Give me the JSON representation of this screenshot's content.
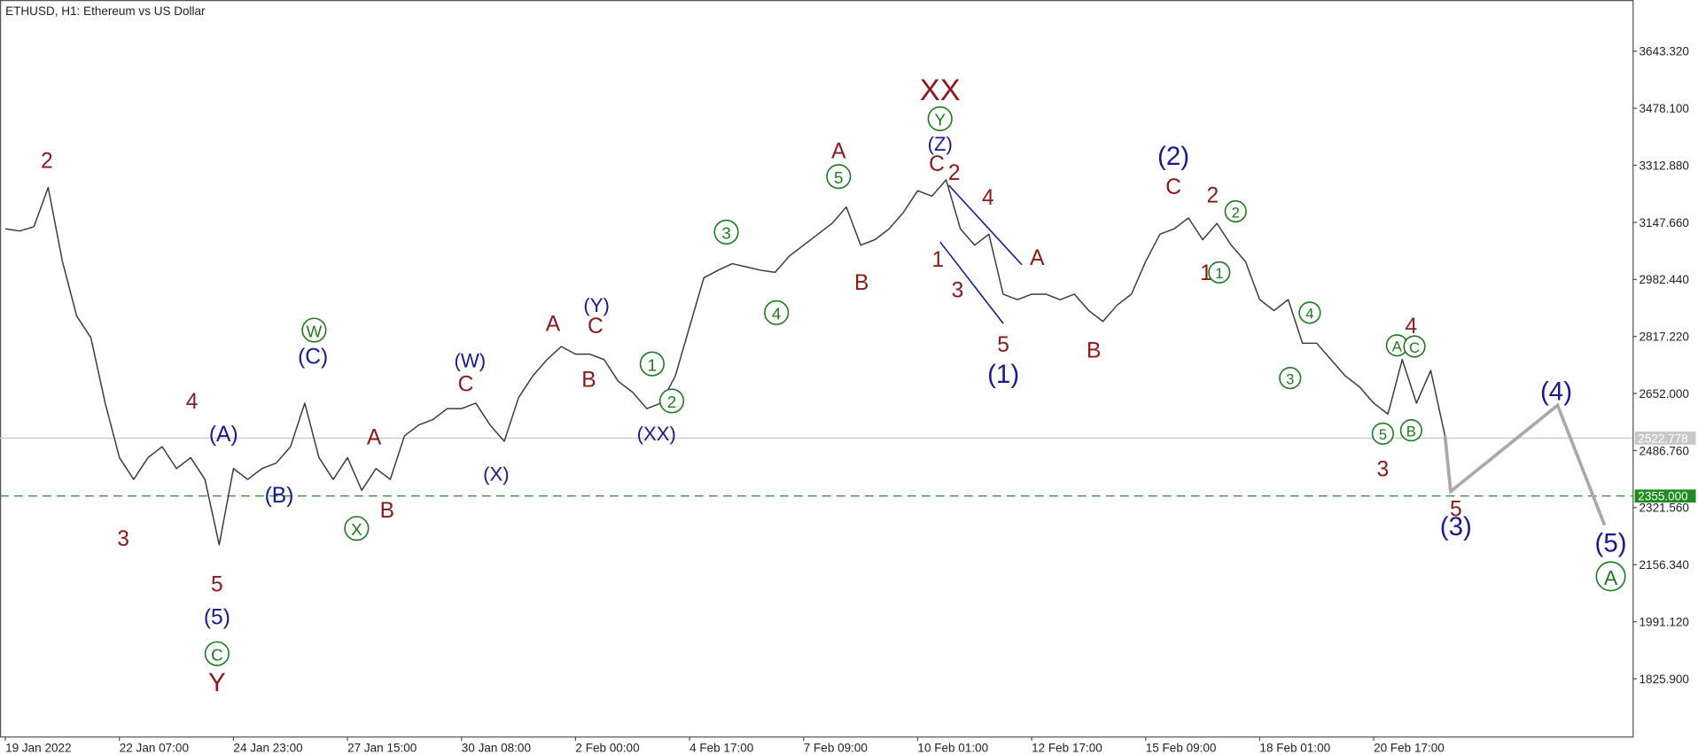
{
  "chart_data": {
    "type": "line",
    "title": "ETHUSD, H1:  Ethereum vs US Dollar",
    "categories": [
      "19 Jan 2022",
      null,
      null,
      null,
      null,
      null,
      null,
      null,
      "22 Jan 07:00",
      null,
      null,
      null,
      null,
      null,
      null,
      null,
      "24 Jan 23:00",
      null,
      null,
      null,
      null,
      null,
      null,
      null,
      "27 Jan 15:00",
      null,
      null,
      null,
      null,
      null,
      null,
      null,
      "30 Jan 08:00",
      null,
      null,
      null,
      null,
      null,
      null,
      null,
      "2 Feb 00:00",
      null,
      null,
      null,
      null,
      null,
      null,
      null,
      "4 Feb 17:00",
      null,
      null,
      null,
      null,
      null,
      null,
      null,
      "7 Feb 09:00",
      null,
      null,
      null,
      null,
      null,
      null,
      null,
      "10 Feb 01:00",
      null,
      null,
      null,
      null,
      null,
      null,
      null,
      "12 Feb 17:00",
      null,
      null,
      null,
      null,
      null,
      null,
      null,
      "15 Feb 09:00",
      null,
      null,
      null,
      null,
      null,
      null,
      null,
      "18 Feb 01:00",
      null,
      null,
      null,
      null,
      null,
      null,
      null,
      "20 Feb 17:00",
      null,
      null,
      null,
      null,
      null
    ],
    "series": [
      {
        "color": "#3a3a3a",
        "values": [
          3128.9,
          3122.6,
          3135.2,
          3248.8,
          3034.3,
          2876.5,
          2813.4,
          2624.0,
          2466.3,
          2403.1,
          2466.3,
          2497.8,
          2434.7,
          2466.3,
          2403.1,
          2213.8,
          2434.7,
          2403.1,
          2434.7,
          2450.5,
          2497.8,
          2624.0,
          2466.3,
          2403.1,
          2466.3,
          2371.6,
          2434.7,
          2403.1,
          2529.4,
          2560.9,
          2576.7,
          2608.3,
          2608.3,
          2624.0,
          2560.9,
          2513.6,
          2639.8,
          2702.9,
          2750.3,
          2788.1,
          2766.0,
          2766.0,
          2750.3,
          2687.2,
          2655.6,
          2608.3,
          2624.0,
          2702.9,
          2844.9,
          2986.9,
          3009.0,
          3028.0,
          3018.5,
          3009.0,
          3002.7,
          3050.0,
          3081.6,
          3113.2,
          3144.7,
          3192.0,
          3081.6,
          3097.4,
          3128.9,
          3176.3,
          3239.4,
          3223.6,
          3270.9,
          3128.9,
          3081.6,
          3113.2,
          2939.6,
          2923.8,
          2939.6,
          2939.6,
          2923.8,
          2939.6,
          2892.3,
          2860.7,
          2908.0,
          2939.6,
          3034.3,
          3113.2,
          3128.9,
          3160.5,
          3097.4,
          3144.7,
          3081.6,
          3034.3,
          2923.8,
          2892.3,
          2923.8,
          2797.6,
          2797.6,
          2750.3,
          2702.9,
          2671.4,
          2624.0,
          2592.5,
          2750.3,
          2624.0,
          2718.7,
          2529.4
        ]
      }
    ],
    "projection": {
      "color": "#a9a9a9",
      "x": [
        101,
        101.4,
        108.9,
        112.2
      ],
      "values": [
        2529.4,
        2368.4,
        2617.7,
        2270.6
      ]
    },
    "xlim": [
      -0.38,
      114.16
    ],
    "ylim": [
      1658.7,
      3791.6
    ],
    "yticks": [
      {
        "value": 3643.32,
        "label": "3643.320"
      },
      {
        "value": 3478.1,
        "label": "3478.100"
      },
      {
        "value": 3312.88,
        "label": "3312.880"
      },
      {
        "value": 3147.66,
        "label": "3147.660"
      },
      {
        "value": 2982.44,
        "label": "2982.440"
      },
      {
        "value": 2817.22,
        "label": "2817.220"
      },
      {
        "value": 2652,
        "label": "2652.000"
      },
      {
        "value": 2486.76,
        "label": "2486.760"
      },
      {
        "value": 2321.56,
        "label": "2321.560"
      },
      {
        "value": 2156.34,
        "label": "2156.340"
      },
      {
        "value": 1991.12,
        "label": "1991.120"
      },
      {
        "value": 1825.9,
        "label": "1825.900"
      }
    ],
    "price_line": {
      "value": 2522.778,
      "label": "2522.778",
      "color": "#c8c8c8"
    },
    "level_line": {
      "value": 2355,
      "label": "2355.000",
      "color": "#1e8c1e"
    },
    "wave_labels": [
      {
        "text": "2",
        "color": "#8b1a1a",
        "circled": false
      },
      {
        "text": "3",
        "color": "#8b1a1a",
        "circled": false
      },
      {
        "text": "4",
        "color": "#8b1a1a",
        "circled": false
      },
      {
        "text": "(A)",
        "color": "#1a1a8c",
        "circled": false
      },
      {
        "text": "(B)",
        "color": "#1a1a8c",
        "circled": false
      },
      {
        "text": "5",
        "color": "#8b1a1a",
        "circled": false
      },
      {
        "text": "(5)",
        "color": "#1a1a8c",
        "circled": false
      },
      {
        "text": "C",
        "color": "#1e7a1e",
        "circled": true
      },
      {
        "text": "Y",
        "color": "#8b1a1a",
        "circled": false
      },
      {
        "text": "W",
        "color": "#1e7a1e",
        "circled": true
      },
      {
        "text": "(C)",
        "color": "#1a1a8c",
        "circled": false
      },
      {
        "text": "A",
        "color": "#8b1a1a",
        "circled": false
      },
      {
        "text": "X",
        "color": "#1e7a1e",
        "circled": true
      },
      {
        "text": "B",
        "color": "#8b1a1a",
        "circled": false
      },
      {
        "text": "(W)",
        "color": "#1a1a8c",
        "circled": false
      },
      {
        "text": "C",
        "color": "#8b1a1a",
        "circled": false
      },
      {
        "text": "(X)",
        "color": "#1a1a8c",
        "circled": false
      },
      {
        "text": "A",
        "color": "#8b1a1a",
        "circled": false
      },
      {
        "text": "(Y)",
        "color": "#1a1a8c",
        "circled": false
      },
      {
        "text": "C",
        "color": "#8b1a1a",
        "circled": false
      },
      {
        "text": "B",
        "color": "#8b1a1a",
        "circled": false
      },
      {
        "text": "1",
        "color": "#1e7a1e",
        "circled": true
      },
      {
        "text": "2",
        "color": "#1e7a1e",
        "circled": true
      },
      {
        "text": "(XX)",
        "color": "#1a1a8c",
        "circled": false
      },
      {
        "text": "3",
        "color": "#1e7a1e",
        "circled": true
      },
      {
        "text": "4",
        "color": "#1e7a1e",
        "circled": true
      },
      {
        "text": "A",
        "color": "#8b1a1a",
        "circled": false
      },
      {
        "text": "5",
        "color": "#1e7a1e",
        "circled": true
      },
      {
        "text": "B",
        "color": "#8b1a1a",
        "circled": false
      },
      {
        "text": "XX",
        "color": "#8b1a1a",
        "circled": false
      },
      {
        "text": "Y",
        "color": "#1e7a1e",
        "circled": true
      },
      {
        "text": "(Z)",
        "color": "#1a1a8c",
        "circled": false
      },
      {
        "text": "C",
        "color": "#8b1a1a",
        "circled": false
      },
      {
        "text": "2",
        "color": "#8b1a1a",
        "circled": false
      },
      {
        "text": "4",
        "color": "#8b1a1a",
        "circled": false
      },
      {
        "text": "1",
        "color": "#8b1a1a",
        "circled": false
      },
      {
        "text": "3",
        "color": "#8b1a1a",
        "circled": false
      },
      {
        "text": "A",
        "color": "#8b1a1a",
        "circled": false
      },
      {
        "text": "5",
        "color": "#8b1a1a",
        "circled": false
      },
      {
        "text": "(1)",
        "color": "#1a1a8c",
        "circled": false
      },
      {
        "text": "B",
        "color": "#8b1a1a",
        "circled": false
      },
      {
        "text": "(2)",
        "color": "#1a1a8c",
        "circled": false
      },
      {
        "text": "C",
        "color": "#8b1a1a",
        "circled": false
      },
      {
        "text": "2",
        "color": "#8b1a1a",
        "circled": false
      },
      {
        "text": "2",
        "color": "#1e7a1e",
        "circled": true
      },
      {
        "text": "1",
        "color": "#8b1a1a",
        "circled": false
      },
      {
        "text": "1",
        "color": "#1e7a1e",
        "circled": true
      },
      {
        "text": "4",
        "color": "#1e7a1e",
        "circled": true
      },
      {
        "text": "3",
        "color": "#1e7a1e",
        "circled": true
      },
      {
        "text": "4",
        "color": "#8b1a1a",
        "circled": false
      },
      {
        "text": "A",
        "color": "#1e7a1e",
        "circled": true
      },
      {
        "text": "C",
        "color": "#1e7a1e",
        "circled": true
      },
      {
        "text": "5",
        "color": "#1e7a1e",
        "circled": true
      },
      {
        "text": "B",
        "color": "#1e7a1e",
        "circled": true
      },
      {
        "text": "3",
        "color": "#8b1a1a",
        "circled": false
      },
      {
        "text": "5",
        "color": "#8b1a1a",
        "circled": false
      },
      {
        "text": "(3)",
        "color": "#1a1a8c",
        "circled": false
      },
      {
        "text": "(4)",
        "color": "#1a1a8c",
        "circled": false
      },
      {
        "text": "(5)",
        "color": "#1a1a8c",
        "circled": false
      },
      {
        "text": "A",
        "color": "#1e7a1e",
        "circled": true
      }
    ]
  }
}
